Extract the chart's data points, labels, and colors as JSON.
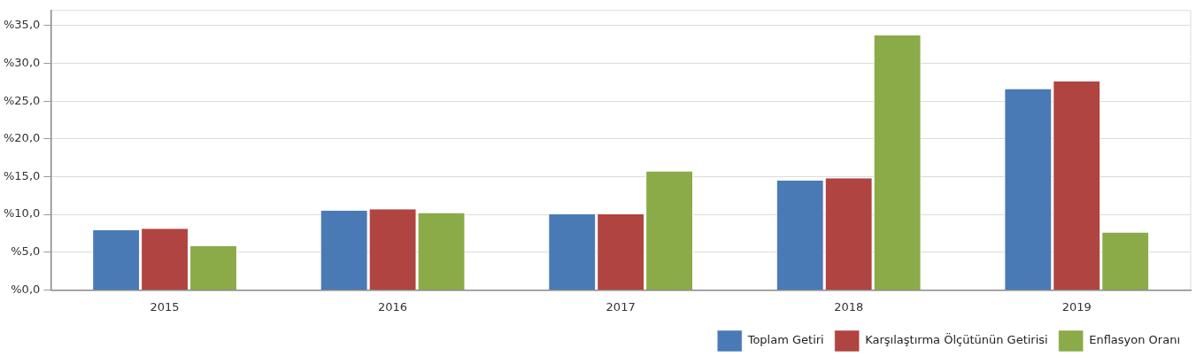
{
  "chart_data": {
    "type": "bar",
    "categories": [
      "2015",
      "2016",
      "2017",
      "2018",
      "2019"
    ],
    "series": [
      {
        "name": "Toplam Getiri",
        "color": "#4a7ab5",
        "values": [
          7.9,
          10.5,
          10.0,
          14.5,
          26.6
        ]
      },
      {
        "name": "Karşılaştırma Ölçütünün Getirisi",
        "color": "#b04440",
        "values": [
          8.1,
          10.7,
          10.0,
          14.8,
          27.6
        ]
      },
      {
        "name": "Enflasyon Oranı",
        "color": "#8aab48",
        "values": [
          5.8,
          10.2,
          15.7,
          33.7,
          7.6
        ]
      }
    ],
    "ylim": [
      0,
      37
    ],
    "yticks": [
      {
        "value": 0,
        "label": "%0,0"
      },
      {
        "value": 5,
        "label": "%5,0"
      },
      {
        "value": 10,
        "label": "%10,0"
      },
      {
        "value": 15,
        "label": "%15,0"
      },
      {
        "value": 20,
        "label": "%20,0"
      },
      {
        "value": 25,
        "label": "%25,0"
      },
      {
        "value": 30,
        "label": "%30,0"
      },
      {
        "value": 35,
        "label": "%35,0"
      }
    ],
    "grid": "y",
    "legend": "bottom right"
  }
}
